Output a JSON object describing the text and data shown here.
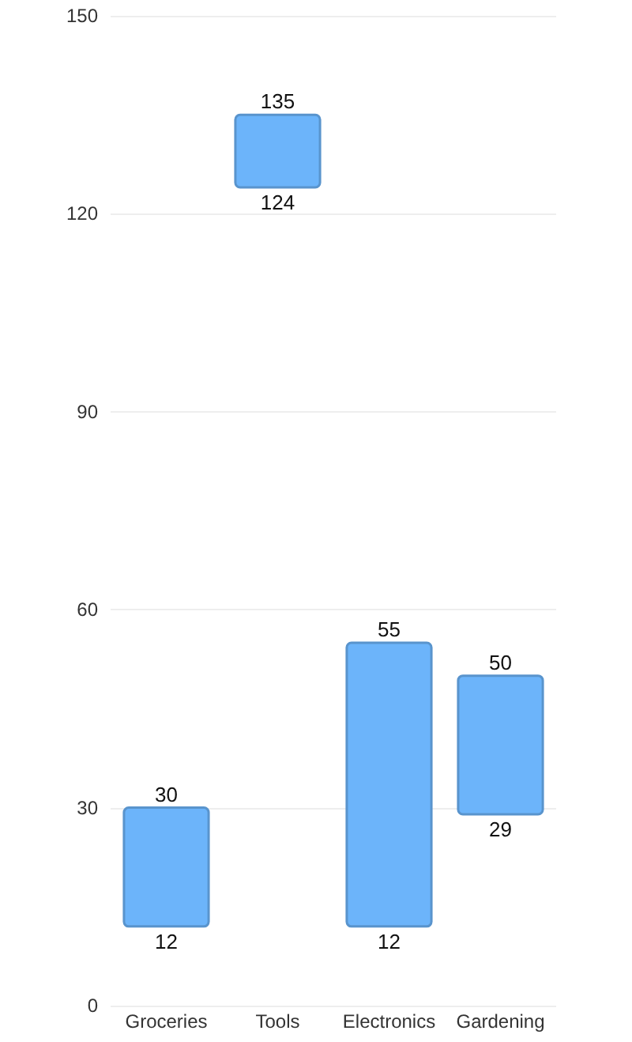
{
  "chart_data": {
    "type": "bar",
    "categories": [
      "Groceries",
      "Tools",
      "Electronics",
      "Gardening"
    ],
    "base": [
      12,
      124,
      12,
      29
    ],
    "values": [
      18,
      11,
      43,
      21
    ],
    "color": "#6cb4fa",
    "ylim": [
      0,
      150
    ],
    "yticks": [
      0,
      30,
      60,
      90,
      120,
      150
    ],
    "grid": "y",
    "annotations": [
      {
        "text": "30",
        "x": "Groceries",
        "y": 30
      },
      {
        "text": "12",
        "x": "Groceries",
        "y": 12
      },
      {
        "text": "135",
        "x": "Tools",
        "y": 135
      },
      {
        "text": "124",
        "x": "Tools",
        "y": 124
      },
      {
        "text": "55",
        "x": "Electronics",
        "y": 55
      },
      {
        "text": "12",
        "x": "Electronics",
        "y": 12
      },
      {
        "text": "50",
        "x": "Gardening",
        "y": 50
      },
      {
        "text": "29",
        "x": "Gardening",
        "y": 29
      }
    ]
  }
}
